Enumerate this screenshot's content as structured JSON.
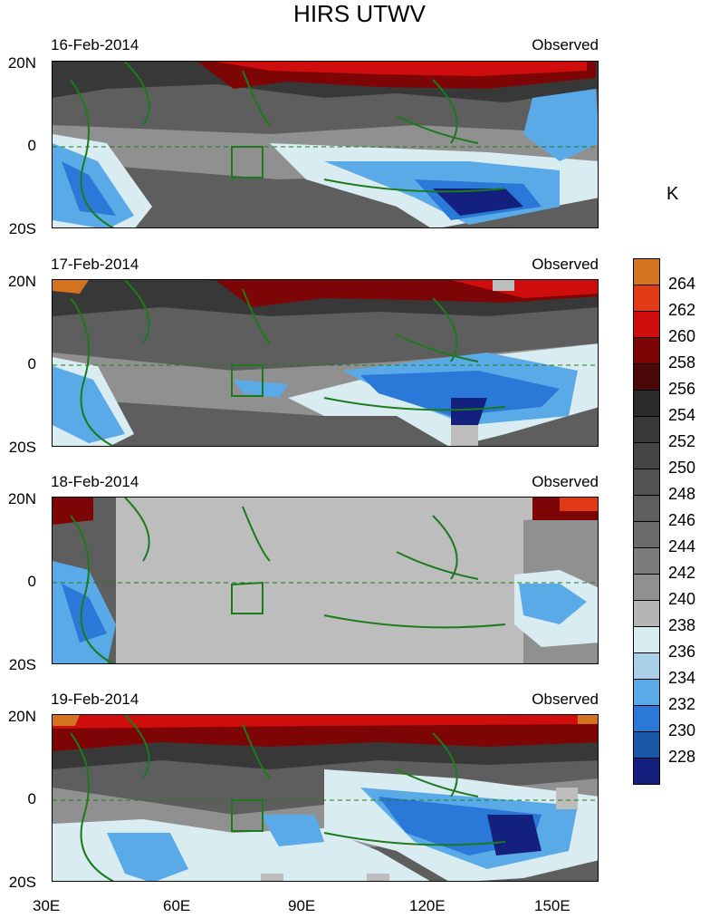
{
  "title": "HIRS UTWV",
  "unit": "K",
  "panels": [
    {
      "date": "16-Feb-2014",
      "tag": "Observed",
      "mostly_missing": false
    },
    {
      "date": "17-Feb-2014",
      "tag": "Observed",
      "mostly_missing": false
    },
    {
      "date": "18-Feb-2014",
      "tag": "Observed",
      "mostly_missing": true
    },
    {
      "date": "19-Feb-2014",
      "tag": "Observed",
      "mostly_missing": false
    }
  ],
  "lat_labels": [
    "20N",
    "0",
    "20S"
  ],
  "lon_labels": [
    "30E",
    "60E",
    "90E",
    "120E",
    "150E"
  ],
  "colorbar": {
    "labels": [
      "264",
      "262",
      "260",
      "258",
      "256",
      "254",
      "252",
      "250",
      "248",
      "246",
      "244",
      "242",
      "240",
      "238",
      "236",
      "234",
      "232",
      "230",
      "228"
    ],
    "colors": [
      "#d4731f",
      "#e03a16",
      "#d00d0d",
      "#7e0505",
      "#4b0808",
      "#2b2b2b",
      "#383838",
      "#454545",
      "#525252",
      "#5e5e5e",
      "#6b6b6b",
      "#7c7c7c",
      "#909090",
      "#b5b5b5",
      "#d8ecf1",
      "#a9cfe9",
      "#5aaae8",
      "#2a78d8",
      "#1b58a8",
      "#14207e"
    ]
  },
  "colors": {
    "coastline": "#1c7a1c",
    "missing": "#bdbdbd"
  }
}
